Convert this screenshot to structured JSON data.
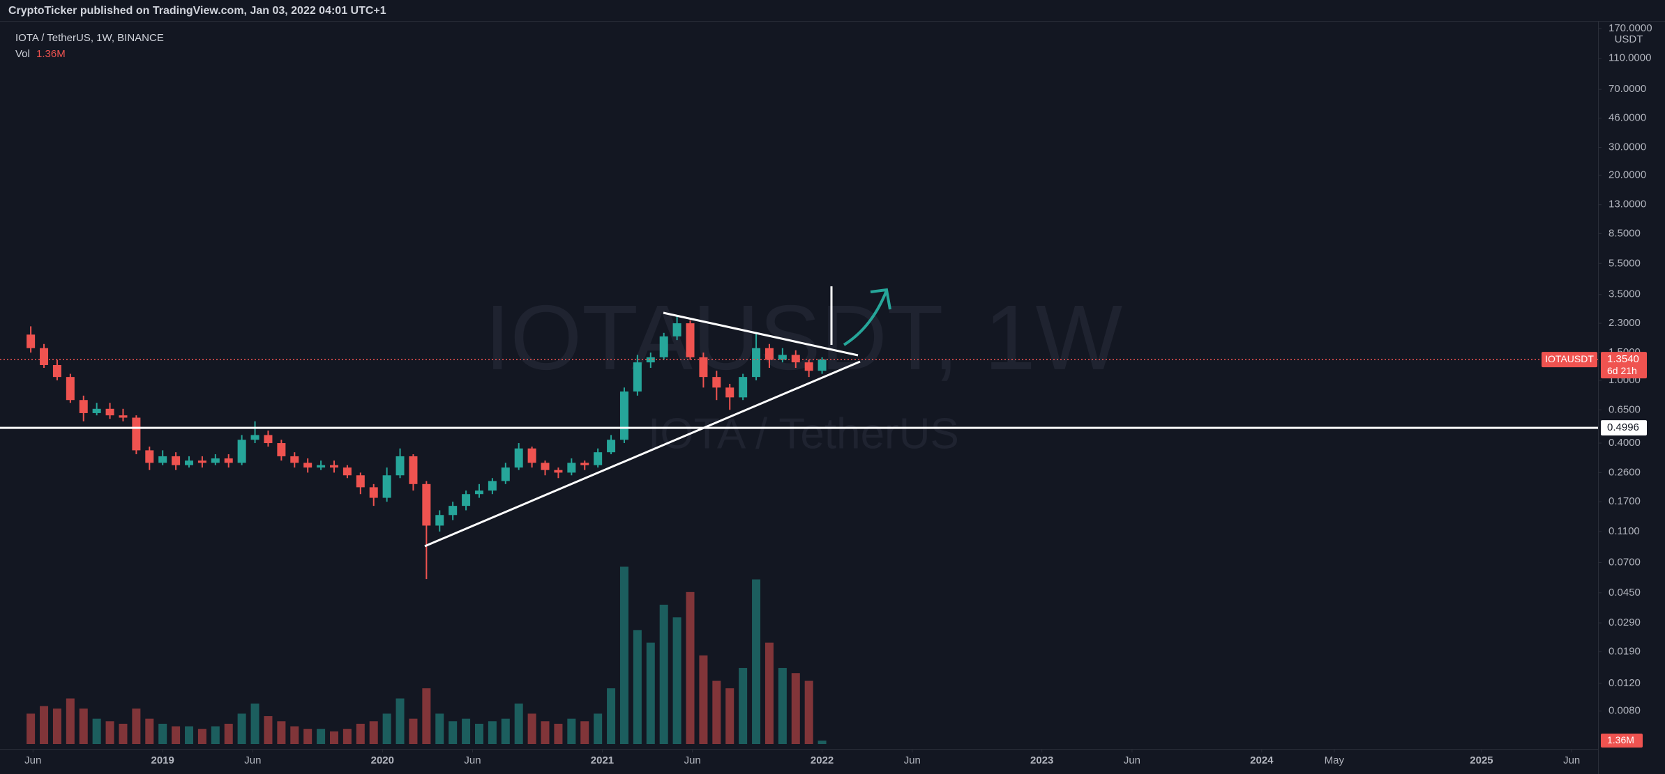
{
  "header": "CryptoTicker published on TradingView.com, Jan 03, 2022 04:01 UTC+1",
  "chart_data": {
    "type": "candlestick",
    "title": "IOTA / TetherUS, 1W, BINANCE",
    "watermark": "IOTAUSDT, 1W",
    "watermark_subtitle": "IOTA / TetherUS",
    "volume_title": "Vol",
    "volume_last_label": "1.36M",
    "currency": "USDT",
    "log_scale": true,
    "grid": false,
    "colors": {
      "up": "#26a69a",
      "down": "#ef5350"
    },
    "x": [
      2018.4,
      2018.46,
      2018.52,
      2018.58,
      2018.64,
      2018.7,
      2018.76,
      2018.82,
      2018.88,
      2018.94,
      2019.0,
      2019.06,
      2019.12,
      2019.18,
      2019.24,
      2019.3,
      2019.36,
      2019.42,
      2019.48,
      2019.54,
      2019.6,
      2019.66,
      2019.72,
      2019.78,
      2019.84,
      2019.9,
      2019.96,
      2020.02,
      2020.08,
      2020.14,
      2020.2,
      2020.26,
      2020.32,
      2020.38,
      2020.44,
      2020.5,
      2020.56,
      2020.62,
      2020.68,
      2020.74,
      2020.8,
      2020.86,
      2020.92,
      2020.98,
      2021.04,
      2021.1,
      2021.16,
      2021.22,
      2021.28,
      2021.34,
      2021.4,
      2021.46,
      2021.52,
      2021.58,
      2021.64,
      2021.7,
      2021.76,
      2021.82,
      2021.88,
      2021.94,
      2022.0
    ],
    "open": [
      1.95,
      1.6,
      1.25,
      1.05,
      0.75,
      0.62,
      0.66,
      0.6,
      0.58,
      0.36,
      0.3,
      0.33,
      0.29,
      0.31,
      0.3,
      0.32,
      0.3,
      0.42,
      0.45,
      0.4,
      0.33,
      0.3,
      0.28,
      0.29,
      0.28,
      0.25,
      0.21,
      0.18,
      0.25,
      0.33,
      0.22,
      0.12,
      0.14,
      0.16,
      0.19,
      0.2,
      0.23,
      0.28,
      0.37,
      0.3,
      0.27,
      0.26,
      0.3,
      0.29,
      0.35,
      0.42,
      0.85,
      1.3,
      1.4,
      1.9,
      2.3,
      1.4,
      1.05,
      0.9,
      0.78,
      1.05,
      1.6,
      1.35,
      1.45,
      1.3,
      1.15
    ],
    "high": [
      2.2,
      1.7,
      1.35,
      1.1,
      0.8,
      0.72,
      0.72,
      0.66,
      0.6,
      0.38,
      0.36,
      0.35,
      0.33,
      0.33,
      0.34,
      0.34,
      0.45,
      0.55,
      0.48,
      0.42,
      0.35,
      0.32,
      0.31,
      0.31,
      0.29,
      0.26,
      0.22,
      0.28,
      0.37,
      0.34,
      0.23,
      0.15,
      0.17,
      0.2,
      0.22,
      0.24,
      0.3,
      0.4,
      0.38,
      0.31,
      0.28,
      0.32,
      0.31,
      0.37,
      0.45,
      0.9,
      1.45,
      1.5,
      2.0,
      2.6,
      2.4,
      1.5,
      1.15,
      0.95,
      1.1,
      2.0,
      1.7,
      1.6,
      1.55,
      1.35,
      1.4
    ],
    "low": [
      1.5,
      1.2,
      1.0,
      0.72,
      0.55,
      0.6,
      0.57,
      0.55,
      0.34,
      0.27,
      0.29,
      0.27,
      0.28,
      0.28,
      0.29,
      0.28,
      0.29,
      0.4,
      0.38,
      0.31,
      0.28,
      0.26,
      0.27,
      0.26,
      0.24,
      0.19,
      0.16,
      0.17,
      0.24,
      0.2,
      0.055,
      0.11,
      0.13,
      0.15,
      0.18,
      0.19,
      0.22,
      0.27,
      0.28,
      0.25,
      0.24,
      0.25,
      0.27,
      0.28,
      0.34,
      0.4,
      0.8,
      1.2,
      1.35,
      1.8,
      1.35,
      0.9,
      0.75,
      0.65,
      0.75,
      1.0,
      1.2,
      1.3,
      1.2,
      1.05,
      1.1
    ],
    "close": [
      1.6,
      1.25,
      1.05,
      0.75,
      0.62,
      0.66,
      0.6,
      0.58,
      0.36,
      0.3,
      0.33,
      0.29,
      0.31,
      0.3,
      0.32,
      0.3,
      0.42,
      0.45,
      0.4,
      0.33,
      0.3,
      0.28,
      0.29,
      0.28,
      0.25,
      0.21,
      0.18,
      0.25,
      0.33,
      0.22,
      0.12,
      0.14,
      0.16,
      0.19,
      0.2,
      0.23,
      0.28,
      0.37,
      0.3,
      0.27,
      0.26,
      0.3,
      0.29,
      0.35,
      0.42,
      0.85,
      1.3,
      1.4,
      1.9,
      2.3,
      1.4,
      1.05,
      0.9,
      0.78,
      1.05,
      1.6,
      1.35,
      1.45,
      1.3,
      1.15,
      1.354
    ],
    "volume": [
      12,
      15,
      14,
      18,
      14,
      10,
      9,
      8,
      14,
      10,
      8,
      7,
      7,
      6,
      7,
      8,
      12,
      16,
      11,
      9,
      7,
      6,
      6,
      5,
      6,
      8,
      9,
      12,
      18,
      10,
      22,
      12,
      9,
      10,
      8,
      9,
      10,
      16,
      12,
      9,
      8,
      10,
      9,
      12,
      22,
      70,
      45,
      40,
      55,
      50,
      60,
      35,
      25,
      22,
      30,
      65,
      40,
      30,
      28,
      25,
      1.36
    ],
    "xlim": [
      2018.26,
      2025.53
    ],
    "xticks": [
      {
        "value": 2018.41,
        "label": "Jun"
      },
      {
        "value": 2019,
        "label": "2019"
      },
      {
        "value": 2019.41,
        "label": "Jun"
      },
      {
        "value": 2020,
        "label": "2020"
      },
      {
        "value": 2020.41,
        "label": "Jun"
      },
      {
        "value": 2021,
        "label": "2021"
      },
      {
        "value": 2021.41,
        "label": "Jun"
      },
      {
        "value": 2022,
        "label": "2022"
      },
      {
        "value": 2022.41,
        "label": "Jun"
      },
      {
        "value": 2023,
        "label": "2023"
      },
      {
        "value": 2023.41,
        "label": "Jun"
      },
      {
        "value": 2024,
        "label": "2024"
      },
      {
        "value": 2024.33,
        "label": "May"
      },
      {
        "value": 2025,
        "label": "2025"
      },
      {
        "value": 2025.41,
        "label": "Jun"
      }
    ],
    "ylim": [
      0.0047,
      190
    ],
    "yticks": [
      {
        "value": 170,
        "label": "170.0000"
      },
      {
        "value": 110,
        "label": "110.0000"
      },
      {
        "value": 70,
        "label": "70.0000"
      },
      {
        "value": 46,
        "label": "46.0000"
      },
      {
        "value": 30,
        "label": "30.0000"
      },
      {
        "value": 20,
        "label": "20.0000"
      },
      {
        "value": 13,
        "label": "13.0000"
      },
      {
        "value": 8.5,
        "label": "8.5000"
      },
      {
        "value": 5.5,
        "label": "5.5000"
      },
      {
        "value": 3.5,
        "label": "3.5000"
      },
      {
        "value": 2.3,
        "label": "2.3000"
      },
      {
        "value": 1.5,
        "label": "1.5000"
      },
      {
        "value": 1,
        "label": "1.0000"
      },
      {
        "value": 0.65,
        "label": "0.6500"
      },
      {
        "value": 0.4,
        "label": "0.4000"
      },
      {
        "value": 0.26,
        "label": "0.2600"
      },
      {
        "value": 0.17,
        "label": "0.1700"
      },
      {
        "value": 0.11,
        "label": "0.1100"
      },
      {
        "value": 0.07,
        "label": "0.0700"
      },
      {
        "value": 0.045,
        "label": "0.0450"
      },
      {
        "value": 0.029,
        "label": "0.0290"
      },
      {
        "value": 0.019,
        "label": "0.0190"
      },
      {
        "value": 0.012,
        "label": "0.0120"
      },
      {
        "value": 0.008,
        "label": "0.0080"
      }
    ],
    "volume_lim": [
      0,
      110
    ],
    "symbol": "IOTAUSDT",
    "last_price": 1.354,
    "last_price_label": "1.3540",
    "countdown": "6d 21h",
    "level": 0.4996
  }
}
